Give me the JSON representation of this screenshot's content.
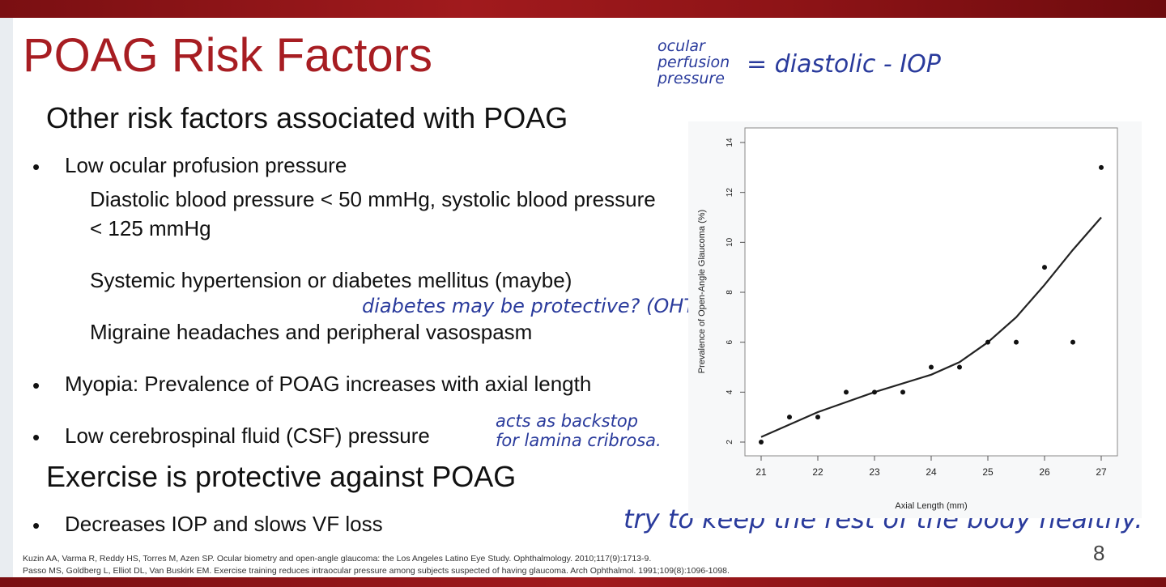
{
  "slide": {
    "title": "POAG Risk Factors",
    "subhead_other": "Other risk factors associated with POAG",
    "bullets": [
      "Low ocular profusion pressure",
      "Myopia: Prevalence of POAG increases with axial length",
      "Low cerebrospinal fluid (CSF) pressure"
    ],
    "sub_bullets": [
      "Diastolic blood pressure < 50 mmHg, systolic blood pressure < 125 mmHg",
      "Systemic hypertension or diabetes mellitus (maybe)",
      "Migraine headaches and peripheral vasospasm"
    ],
    "subhead_exercise": "Exercise is protective against POAG",
    "exercise_bullets": [
      "Decreases IOP and slows VF loss"
    ],
    "bullet_char": "•",
    "page_number": "8",
    "references": [
      "Kuzin AA, Varma R, Reddy HS, Torres M, Azen SP. Ocular biometry and open-angle glaucoma: the Los Angeles Latino Eye Study. Ophthalmology. 2010;117(9):1713-9.",
      "Passo MS, Goldberg L, Elliot DL, Van Buskirk EM. Exercise training reduces intraocular pressure among subjects suspected of having glaucoma. Arch Ophthalmol. 1991;109(8):1096-1098."
    ],
    "colors": {
      "title": "#a71d22",
      "bar": "#8c1316",
      "ink": "#2a3b9c"
    }
  },
  "annotations": {
    "perfusion_l1": "ocular",
    "perfusion_l2": "perfusion",
    "perfusion_l3": "pressure",
    "perfusion_eq": "= diastolic - IOP",
    "diabetes_note": "diabetes may be protective? (OHTS)",
    "csf_l1": "acts as backstop",
    "csf_l2": "for lamina cribrosa.",
    "healthy_note": "try to keep the rest of the body healthy."
  },
  "chart_data": {
    "type": "scatter",
    "xlabel": "Axial Length (mm)",
    "ylabel": "Prevalence of Open-Angle Glaucoma (%)",
    "xlim": [
      21,
      27
    ],
    "ylim": [
      2,
      14
    ],
    "xticks": [
      21,
      22,
      23,
      24,
      25,
      26,
      27
    ],
    "yticks": [
      2,
      4,
      6,
      8,
      10,
      12,
      14
    ],
    "points": [
      {
        "x": 21.0,
        "y": 2.0
      },
      {
        "x": 21.5,
        "y": 3.0
      },
      {
        "x": 22.0,
        "y": 3.0
      },
      {
        "x": 22.5,
        "y": 4.0
      },
      {
        "x": 23.0,
        "y": 4.0
      },
      {
        "x": 23.5,
        "y": 4.0
      },
      {
        "x": 24.0,
        "y": 5.0
      },
      {
        "x": 24.5,
        "y": 5.0
      },
      {
        "x": 25.0,
        "y": 6.0
      },
      {
        "x": 25.5,
        "y": 6.0
      },
      {
        "x": 26.0,
        "y": 9.0
      },
      {
        "x": 26.5,
        "y": 6.0
      },
      {
        "x": 27.0,
        "y": 13.0
      }
    ],
    "fit_curve": [
      {
        "x": 21.0,
        "y": 2.2
      },
      {
        "x": 22.0,
        "y": 3.2
      },
      {
        "x": 23.0,
        "y": 4.0
      },
      {
        "x": 24.0,
        "y": 4.7
      },
      {
        "x": 24.5,
        "y": 5.2
      },
      {
        "x": 25.0,
        "y": 6.0
      },
      {
        "x": 25.5,
        "y": 7.0
      },
      {
        "x": 26.0,
        "y": 8.3
      },
      {
        "x": 26.5,
        "y": 9.7
      },
      {
        "x": 27.0,
        "y": 11.0
      }
    ],
    "grid": false
  }
}
